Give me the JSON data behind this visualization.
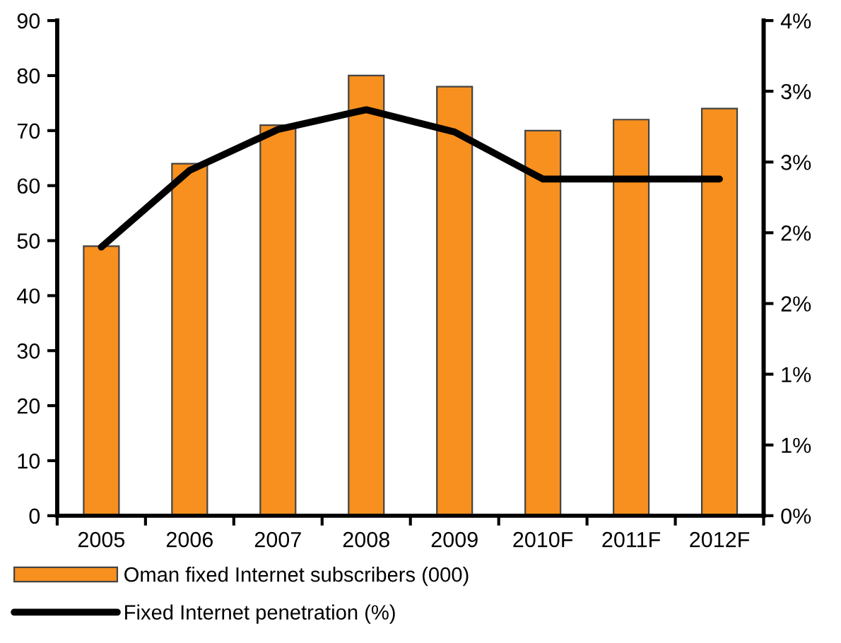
{
  "chart_data": {
    "type": "bar",
    "categories": [
      "2005",
      "2006",
      "2007",
      "2008",
      "2009",
      "2010F",
      "2011F",
      "2012F"
    ],
    "series": [
      {
        "name": "Oman fixed Internet subscribers (000)",
        "color": "#f7901e",
        "values": [
          49,
          64,
          71,
          80,
          78,
          70,
          72,
          74
        ]
      },
      {
        "name": "Fixed Internet penetration (%)",
        "color": "#000000",
        "type": "line",
        "axis": "y2",
        "values": [
          2.17,
          2.79,
          3.12,
          3.28,
          3.1,
          2.72,
          2.72,
          2.72
        ]
      }
    ],
    "ylim": [
      0,
      90
    ],
    "yticks": [
      0,
      10,
      20,
      30,
      40,
      50,
      60,
      70,
      80,
      90
    ],
    "y2lim": [
      0,
      4
    ],
    "y2ticks": [
      {
        "value": 0,
        "label": "0%"
      },
      {
        "value": 0.571,
        "label": "1%"
      },
      {
        "value": 1.143,
        "label": "1%"
      },
      {
        "value": 1.714,
        "label": "2%"
      },
      {
        "value": 2.286,
        "label": "2%"
      },
      {
        "value": 2.857,
        "label": "3%"
      },
      {
        "value": 3.429,
        "label": "3%"
      },
      {
        "value": 4,
        "label": "4%"
      }
    ],
    "grid": false,
    "legend": "bottom left",
    "marker": "none",
    "line_style": "solid"
  }
}
